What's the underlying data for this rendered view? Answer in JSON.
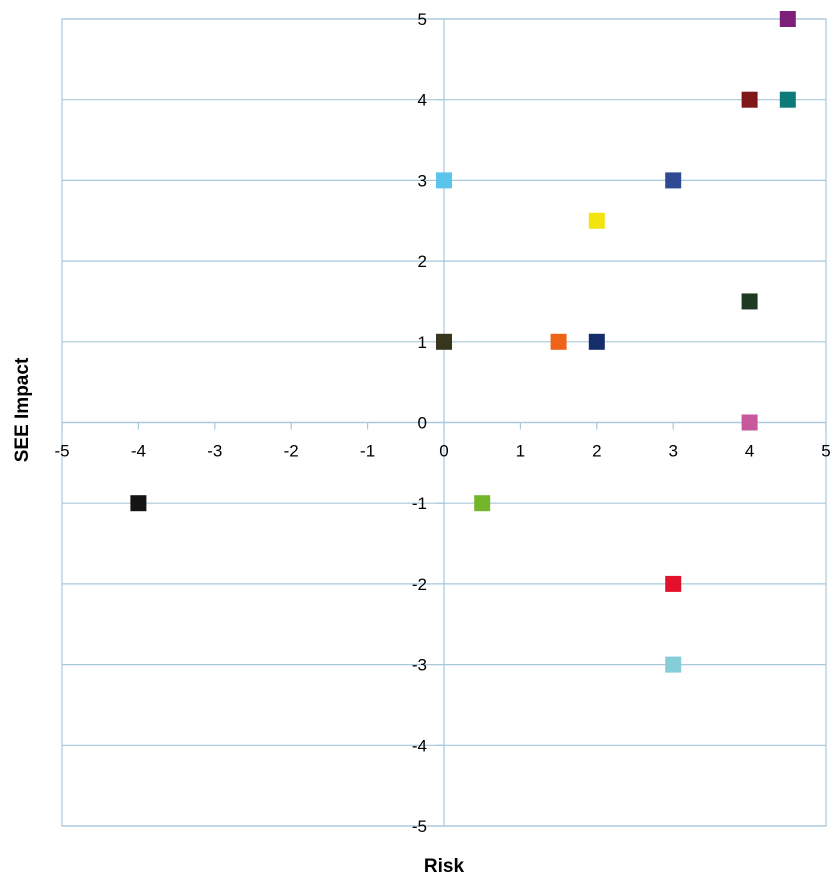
{
  "chart_data": {
    "type": "scatter",
    "title": "",
    "xlabel": "Risk",
    "ylabel": "SEE Impact",
    "xlim": [
      -5,
      5
    ],
    "ylim": [
      -5,
      5
    ],
    "x_ticks": [
      -5,
      -4,
      -3,
      -2,
      -1,
      0,
      1,
      2,
      3,
      4,
      5
    ],
    "y_ticks": [
      -5,
      -4,
      -3,
      -2,
      -1,
      0,
      1,
      2,
      3,
      4,
      5
    ],
    "grid": true,
    "marker": "square",
    "points": [
      {
        "x": 4.5,
        "y": 5,
        "color": "#7b1f7a"
      },
      {
        "x": 4,
        "y": 4,
        "color": "#7f1719"
      },
      {
        "x": 4.5,
        "y": 4,
        "color": "#0b7a78"
      },
      {
        "x": 0,
        "y": 3,
        "color": "#5bc4ea"
      },
      {
        "x": 3,
        "y": 3,
        "color": "#2e4a92"
      },
      {
        "x": 2,
        "y": 2.5,
        "color": "#f4e40d"
      },
      {
        "x": 4,
        "y": 1.5,
        "color": "#1f3a21"
      },
      {
        "x": 0,
        "y": 1,
        "color": "#38351d"
      },
      {
        "x": 1.5,
        "y": 1,
        "color": "#ef6318"
      },
      {
        "x": 2,
        "y": 1,
        "color": "#132e6a"
      },
      {
        "x": 4,
        "y": 0,
        "color": "#c7589b"
      },
      {
        "x": -4,
        "y": -1,
        "color": "#141414"
      },
      {
        "x": 0.5,
        "y": -1,
        "color": "#74b52a"
      },
      {
        "x": 3,
        "y": -2,
        "color": "#e3122a"
      },
      {
        "x": 3,
        "y": -3,
        "color": "#86cdd8"
      }
    ]
  },
  "colors": {
    "grid": "#a8c8dc",
    "axis": "#a8c8dc"
  }
}
